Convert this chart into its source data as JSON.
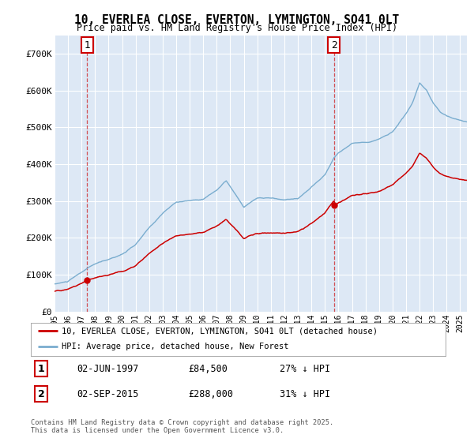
{
  "title_line1": "10, EVERLEA CLOSE, EVERTON, LYMINGTON, SO41 0LT",
  "title_line2": "Price paid vs. HM Land Registry's House Price Index (HPI)",
  "legend_label_red": "10, EVERLEA CLOSE, EVERTON, LYMINGTON, SO41 0LT (detached house)",
  "legend_label_blue": "HPI: Average price, detached house, New Forest",
  "annotation1_date": "02-JUN-1997",
  "annotation1_price": "£84,500",
  "annotation1_hpi": "27% ↓ HPI",
  "annotation2_date": "02-SEP-2015",
  "annotation2_price": "£288,000",
  "annotation2_hpi": "31% ↓ HPI",
  "footnote": "Contains HM Land Registry data © Crown copyright and database right 2025.\nThis data is licensed under the Open Government Licence v3.0.",
  "ylim": [
    0,
    750000
  ],
  "yticks": [
    0,
    100000,
    200000,
    300000,
    400000,
    500000,
    600000,
    700000
  ],
  "ytick_labels": [
    "£0",
    "£100K",
    "£200K",
    "£300K",
    "£400K",
    "£500K",
    "£600K",
    "£700K"
  ],
  "plot_bg_color": "#dde8f5",
  "red_color": "#cc0000",
  "blue_color": "#7aadcf",
  "marker1_x": 1997.42,
  "marker1_y": 84500,
  "marker2_x": 2015.67,
  "marker2_y": 288000,
  "vline1_x": 1997.42,
  "vline2_x": 2015.67,
  "xmin": 1995,
  "xmax": 2025.5
}
